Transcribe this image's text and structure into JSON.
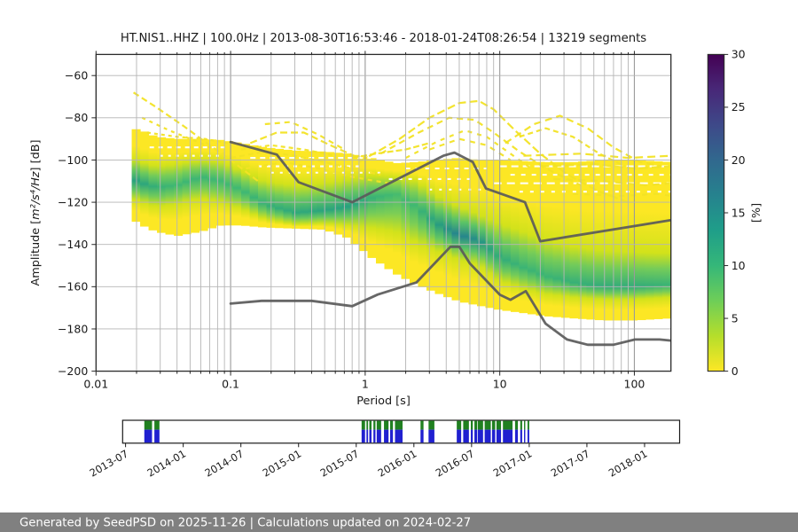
{
  "figure": {
    "footer": "Generated by SeedPSD on 2025-11-26 | Calculations updated on 2024-02-27",
    "footer_bg": "#808080",
    "footer_text_color": "#ffffff"
  },
  "chart_data": {
    "type": "heatmap",
    "title": "HT.NIS1..HHZ | 100.0Hz | 2013-08-30T16:53:46 - 2018-01-24T08:26:54 | 13219 segments",
    "xlabel": "Period [s]",
    "ylabel_prefix": "Amplitude [",
    "ylabel_math": "m²/s⁴/Hz",
    "ylabel_suffix": "] [dB]",
    "xlim": [
      0.01,
      187
    ],
    "ylim": [
      -200,
      -50
    ],
    "grid": true,
    "x_ticks": [
      {
        "v": 0.01,
        "label": "0.01"
      },
      {
        "v": 0.1,
        "label": "0.1"
      },
      {
        "v": 1,
        "label": "1"
      },
      {
        "v": 10,
        "label": "10"
      },
      {
        "v": 100,
        "label": "100"
      }
    ],
    "y_ticks": [
      {
        "v": -60,
        "label": "−60"
      },
      {
        "v": -80,
        "label": "−80"
      },
      {
        "v": -100,
        "label": "−100"
      },
      {
        "v": -120,
        "label": "−120"
      },
      {
        "v": -140,
        "label": "−140"
      },
      {
        "v": -160,
        "label": "−160"
      },
      {
        "v": -180,
        "label": "−180"
      },
      {
        "v": -200,
        "label": "−200"
      }
    ],
    "colorbar": {
      "label": "[%]",
      "min": 0,
      "max": 30,
      "ticks": [
        0,
        5,
        10,
        15,
        20,
        25,
        30
      ],
      "viridis_bottom_to_top": [
        "#fde725",
        "#b5de2b",
        "#6ece58",
        "#35b779",
        "#1f9e89",
        "#26828e",
        "#31688e",
        "#3e4989",
        "#482878",
        "#440154"
      ]
    },
    "colors": {
      "yellow": "#fce724",
      "yellow_green": "#d2e21b",
      "grid_major": "#9a9a9a",
      "grid_minor": "#b5b5b5",
      "frame": "#2a2a2a",
      "noise_model": "#5a5a5a",
      "outlier": "#f2e325"
    },
    "teal_scale": [
      [
        0,
        "#8ed645"
      ],
      [
        0.5,
        "#3fb873"
      ],
      [
        0.8,
        "#27a07f"
      ],
      [
        1,
        "#26828e"
      ]
    ],
    "cloud_columns": [
      [
        0.0185,
        -85,
        -99,
        -109,
        -118,
        -128,
        0.8
      ],
      [
        0.022,
        -86,
        -101,
        -111,
        -120,
        -131,
        0.75
      ],
      [
        0.028,
        -89,
        -103,
        -113,
        -122,
        -134,
        0.6
      ],
      [
        0.04,
        -90,
        -102,
        -112,
        -121,
        -136,
        0.5
      ],
      [
        0.06,
        -90,
        -100,
        -108,
        -118,
        -134,
        0.55
      ],
      [
        0.085,
        -90.5,
        -101,
        -110,
        -120,
        -131,
        0.5
      ],
      [
        0.12,
        -92,
        -105,
        -114,
        -123,
        -131,
        0.5
      ],
      [
        0.18,
        -94,
        -110,
        -121,
        -128,
        -132,
        0.6
      ],
      [
        0.3,
        -95.5,
        -112,
        -125,
        -130.5,
        -132.5,
        0.7
      ],
      [
        0.5,
        -96,
        -111,
        -124,
        -130,
        -133,
        0.75
      ],
      [
        0.75,
        -97,
        -109,
        -122,
        -131,
        -137,
        0.8
      ],
      [
        1.1,
        -99,
        -107.5,
        -118,
        -132,
        -146,
        0.6
      ],
      [
        1.7,
        -101.5,
        -108,
        -116,
        -134,
        -154,
        0.45
      ],
      [
        2.4,
        -101,
        -110,
        -122,
        -139,
        -159,
        0.5
      ],
      [
        3.4,
        -100,
        -117,
        -130,
        -143,
        -163,
        0.8
      ],
      [
        5,
        -99,
        -122,
        -135.5,
        -147,
        -167,
        1.0
      ],
      [
        7,
        -100,
        -126,
        -138,
        -150,
        -169,
        0.9
      ],
      [
        10,
        -100,
        -130,
        -146,
        -157,
        -171,
        0.65
      ],
      [
        15,
        -100.5,
        -134,
        -151,
        -161,
        -172.5,
        0.55
      ],
      [
        22,
        -101,
        -138,
        -155,
        -163.5,
        -174,
        0.55
      ],
      [
        35,
        -101,
        -141,
        -158,
        -165,
        -175,
        0.6
      ],
      [
        60,
        -100,
        -143,
        -160,
        -166,
        -176,
        0.65
      ],
      [
        100,
        -100,
        -143.5,
        -160,
        -166,
        -176,
        0.65
      ],
      [
        140,
        -100.5,
        -144,
        -159.5,
        -165.5,
        -175.5,
        0.6
      ],
      [
        187,
        -101,
        -144,
        -159,
        -165,
        -175,
        0.55
      ]
    ],
    "noise_models": {
      "nhnm": [
        [
          0.1,
          -91.5
        ],
        [
          0.22,
          -97.4
        ],
        [
          0.32,
          -110.5
        ],
        [
          0.8,
          -120
        ],
        [
          3.8,
          -98
        ],
        [
          4.6,
          -96.5
        ],
        [
          6.3,
          -101
        ],
        [
          7.9,
          -113.5
        ],
        [
          15.4,
          -120
        ],
        [
          20,
          -138.5
        ],
        [
          187,
          -128.5
        ]
      ],
      "nlnm": [
        [
          0.1,
          -168
        ],
        [
          0.17,
          -166.7
        ],
        [
          0.4,
          -166.7
        ],
        [
          0.8,
          -169.2
        ],
        [
          1.24,
          -163.7
        ],
        [
          2.4,
          -158
        ],
        [
          4.3,
          -141.1
        ],
        [
          5,
          -141.1
        ],
        [
          6,
          -149
        ],
        [
          10,
          -163.8
        ],
        [
          12,
          -166.2
        ],
        [
          15.6,
          -162.1
        ],
        [
          21.9,
          -177.5
        ],
        [
          31.6,
          -185
        ],
        [
          45,
          -187.5
        ],
        [
          70,
          -187.5
        ],
        [
          101,
          -185
        ],
        [
          154,
          -185
        ],
        [
          187,
          -185.5
        ]
      ]
    },
    "outlier_lines": [
      {
        "dash": "7 4",
        "pts": [
          [
            0.019,
            -68
          ],
          [
            0.028,
            -75
          ],
          [
            0.045,
            -84
          ],
          [
            0.07,
            -93
          ],
          [
            0.11,
            -102
          ],
          [
            0.16,
            -110
          ]
        ]
      },
      {
        "dash": "4 5",
        "pts": [
          [
            0.022,
            -80
          ],
          [
            0.035,
            -86
          ],
          [
            0.06,
            -92
          ],
          [
            0.09,
            -97
          ]
        ]
      },
      {
        "dash": "4 4",
        "pts": [
          [
            0.024,
            -87
          ],
          [
            0.04,
            -89
          ],
          [
            0.065,
            -90
          ],
          [
            0.095,
            -92
          ]
        ]
      },
      {
        "dash": "6 4",
        "pts": [
          [
            0.1,
            -99
          ],
          [
            0.18,
            -96
          ],
          [
            0.3,
            -98
          ],
          [
            0.5,
            -101
          ],
          [
            0.8,
            -104
          ],
          [
            1.3,
            -107
          ]
        ]
      },
      {
        "dash": "5 5",
        "pts": [
          [
            0.13,
            -104
          ],
          [
            0.25,
            -101
          ],
          [
            0.45,
            -104
          ],
          [
            0.8,
            -108
          ],
          [
            1.5,
            -111
          ]
        ]
      },
      {
        "dash": "5 4",
        "pts": [
          [
            0.12,
            -95
          ],
          [
            0.2,
            -93
          ],
          [
            0.35,
            -95
          ],
          [
            0.6,
            -98
          ]
        ]
      },
      {
        "dash": "8 4",
        "pts": [
          [
            0.14,
            -92
          ],
          [
            0.22,
            -87
          ],
          [
            0.35,
            -87
          ],
          [
            0.55,
            -93
          ],
          [
            0.9,
            -99
          ]
        ]
      },
      {
        "dash": "6 5",
        "pts": [
          [
            0.18,
            -83
          ],
          [
            0.28,
            -82
          ],
          [
            0.45,
            -88
          ],
          [
            0.7,
            -95
          ]
        ]
      },
      {
        "dash": "7 3",
        "pts": [
          [
            0.8,
            -99
          ],
          [
            1.2,
            -97
          ],
          [
            2,
            -95
          ],
          [
            3,
            -92
          ]
        ]
      },
      {
        "dash": "9 4",
        "pts": [
          [
            0.9,
            -101
          ],
          [
            1.8,
            -90
          ],
          [
            3,
            -80
          ],
          [
            5,
            -73
          ],
          [
            7,
            -72
          ],
          [
            9,
            -76
          ],
          [
            13,
            -86
          ],
          [
            20,
            -97
          ],
          [
            32,
            -107
          ],
          [
            55,
            -115
          ],
          [
            90,
            -120
          ]
        ]
      },
      {
        "dash": "7 5",
        "pts": [
          [
            1.3,
            -97
          ],
          [
            2.5,
            -87
          ],
          [
            4.2,
            -80
          ],
          [
            6.5,
            -81
          ],
          [
            9,
            -87
          ],
          [
            14,
            -96
          ],
          [
            22,
            -104
          ],
          [
            40,
            -112
          ]
        ]
      },
      {
        "dash": "5 6",
        "pts": [
          [
            2,
            -99
          ],
          [
            3.5,
            -91
          ],
          [
            5.5,
            -86
          ],
          [
            8,
            -89
          ],
          [
            12,
            -97
          ],
          [
            18,
            -105
          ]
        ]
      },
      {
        "dash": "6 6",
        "pts": [
          [
            3,
            -95
          ],
          [
            5,
            -90
          ],
          [
            8,
            -93
          ],
          [
            12,
            -100
          ]
        ]
      },
      {
        "dash": "8 5",
        "pts": [
          [
            11,
            -92
          ],
          [
            18,
            -83
          ],
          [
            28,
            -79
          ],
          [
            45,
            -85
          ],
          [
            70,
            -94
          ],
          [
            110,
            -101
          ],
          [
            160,
            -103
          ]
        ]
      },
      {
        "dash": "6 4",
        "pts": [
          [
            14,
            -89
          ],
          [
            22,
            -85
          ],
          [
            35,
            -89
          ],
          [
            55,
            -97
          ],
          [
            85,
            -103
          ]
        ]
      },
      {
        "dash": "9 5",
        "pts": [
          [
            15,
            -98
          ],
          [
            40,
            -97
          ],
          [
            90,
            -99
          ],
          [
            187,
            -98
          ]
        ]
      },
      {
        "dash": "10 4",
        "pts": [
          [
            20,
            -103
          ],
          [
            50,
            -102
          ],
          [
            100,
            -104
          ],
          [
            187,
            -103
          ]
        ]
      },
      {
        "dash": "8 6",
        "pts": [
          [
            25,
            -109
          ],
          [
            60,
            -110
          ],
          [
            120,
            -112
          ],
          [
            187,
            -111
          ]
        ]
      },
      {
        "dash": "6 7",
        "pts": [
          [
            35,
            -116
          ],
          [
            80,
            -117
          ],
          [
            150,
            -116
          ],
          [
            187,
            -117
          ]
        ]
      }
    ],
    "white_streaks": [
      [
        10,
        187,
        -103,
        "8 5"
      ],
      [
        12,
        187,
        -107,
        "5 7"
      ],
      [
        9,
        187,
        -111,
        "9 6"
      ],
      [
        14,
        187,
        -115,
        "4 8"
      ],
      [
        2,
        8,
        -104,
        "5 6"
      ],
      [
        1.5,
        6,
        -109,
        "4 7"
      ],
      [
        3,
        9,
        -114,
        "3 8"
      ],
      [
        0.14,
        1.1,
        -99,
        "6 5"
      ],
      [
        0.16,
        0.9,
        -103,
        "4 6"
      ],
      [
        0.2,
        1.3,
        -106,
        "3 7"
      ],
      [
        0.025,
        0.095,
        -94,
        "5 5"
      ],
      [
        0.03,
        0.09,
        -98,
        "3 6"
      ]
    ]
  },
  "timeline": {
    "tick_labels": [
      "2013-07",
      "2014-01",
      "2014-07",
      "2015-01",
      "2015-07",
      "2016-01",
      "2016-07",
      "2017-01",
      "2017-07",
      "2018-01"
    ],
    "colors": {
      "data_coverage": "#208020",
      "psd_coverage": "#2020d0"
    },
    "segments": [
      {
        "start": "2013-08-30",
        "end": "2013-09-24"
      },
      {
        "start": "2013-10-01",
        "end": "2013-10-17"
      },
      {
        "start": "2015-07-18",
        "end": "2015-07-29"
      },
      {
        "start": "2015-08-03",
        "end": "2015-08-08"
      },
      {
        "start": "2015-08-12",
        "end": "2015-08-19"
      },
      {
        "start": "2015-08-25",
        "end": "2015-09-01"
      },
      {
        "start": "2015-09-05",
        "end": "2015-09-19"
      },
      {
        "start": "2015-09-28",
        "end": "2015-10-12"
      },
      {
        "start": "2015-10-17",
        "end": "2015-10-26"
      },
      {
        "start": "2015-11-02",
        "end": "2015-11-26"
      },
      {
        "start": "2016-01-22",
        "end": "2016-02-01"
      },
      {
        "start": "2016-02-17",
        "end": "2016-03-05"
      },
      {
        "start": "2016-05-15",
        "end": "2016-05-29"
      },
      {
        "start": "2016-06-05",
        "end": "2016-06-23"
      },
      {
        "start": "2016-06-29",
        "end": "2016-07-05"
      },
      {
        "start": "2016-07-10",
        "end": "2016-07-19"
      },
      {
        "start": "2016-07-21",
        "end": "2016-08-07"
      },
      {
        "start": "2016-08-12",
        "end": "2016-09-01"
      },
      {
        "start": "2016-09-05",
        "end": "2016-09-15"
      },
      {
        "start": "2016-09-19",
        "end": "2016-10-03"
      },
      {
        "start": "2016-10-09",
        "end": "2016-11-09"
      },
      {
        "start": "2016-11-17",
        "end": "2016-11-26"
      },
      {
        "start": "2016-12-03",
        "end": "2016-12-09"
      },
      {
        "start": "2016-12-15",
        "end": "2016-12-18"
      },
      {
        "start": "2016-12-26",
        "end": "2017-01-01"
      }
    ]
  }
}
